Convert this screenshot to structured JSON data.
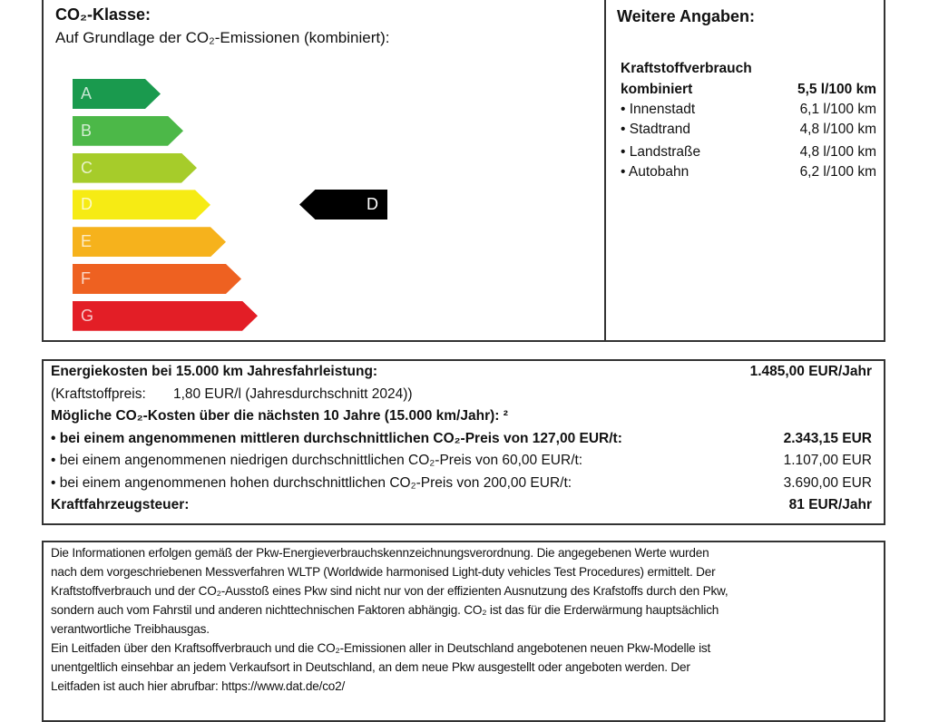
{
  "co2_class": {
    "title": "CO₂-Klasse:",
    "subtitle": "Auf Grundlage der CO₂-Emissionen (kombiniert):",
    "classes": [
      {
        "label": "A",
        "color": "#1a9a4e"
      },
      {
        "label": "B",
        "color": "#4cb848"
      },
      {
        "label": "C",
        "color": "#a6cc2a"
      },
      {
        "label": "D",
        "color": "#f6eb14"
      },
      {
        "label": "E",
        "color": "#f6b21c"
      },
      {
        "label": "F",
        "color": "#ee6121"
      },
      {
        "label": "G",
        "color": "#e31e26"
      }
    ],
    "current": "D"
  },
  "weitere": {
    "title": "Weitere Angaben:",
    "heading": "Kraftstoffverbrauch",
    "rows": [
      {
        "label": "kombiniert",
        "value": "5,5 l/100 km"
      },
      {
        "label": "• Innenstadt",
        "value": "6,1 l/100 km"
      },
      {
        "label": "• Stadtrand",
        "value": "4,8 l/100 km"
      },
      {
        "label": "• Landstraße",
        "value": "4,8 l/100 km"
      },
      {
        "label": "• Autobahn",
        "value": "6,2 l/100 km"
      }
    ]
  },
  "costs": {
    "rows": [
      {
        "label": "Energiekosten bei 15.000 km Jahresfahrleistung:",
        "value": "1.485,00 EUR/Jahr"
      },
      {
        "label": "(Kraftstoffpreis:       1,80 EUR/l (Jahresdurchschnitt 2024))",
        "value": ""
      },
      {
        "label": "Mögliche CO₂-Kosten über die nächsten 10 Jahre (15.000 km/Jahr): ²",
        "value": ""
      },
      {
        "label": "• bei einem angenommenen mittleren durchschnittlichen CO₂-Preis von 127,00 EUR/t:",
        "value": "2.343,15 EUR"
      },
      {
        "label": "• bei einem angenommenen niedrigen durchschnittlichen CO₂-Preis von 60,00 EUR/t:",
        "value": "1.107,00 EUR"
      },
      {
        "label": "• bei einem angenommenen hohen durchschnittlichen CO₂-Preis von 200,00 EUR/t:",
        "value": "3.690,00 EUR"
      },
      {
        "label": "Kraftfahrzeugsteuer:",
        "value": "81 EUR/Jahr"
      }
    ]
  },
  "info": {
    "lines": [
      "Die Informationen erfolgen gemäß der Pkw-Energieverbrauchskennzeichnungsverordnung. Die angegebenen Werte wurden",
      "nach dem vorgeschriebenen Messverfahren WLTP (Worldwide harmonised Light-duty vehicles Test Procedures) ermittelt. Der",
      "Kraftstoffverbrauch und der CO₂-Ausstoß eines Pkw sind nicht nur von der effizienten Ausnutzung des Krafstoffs durch den Pkw,",
      "sondern auch vom Fahrstil und anderen nichttechnischen Faktoren abhängig. CO₂ ist das für die Erderwärmung hauptsächlich",
      "verantwortliche Treibhausgas.",
      "Ein Leitfaden über den Kraftsoffverbrauch und die CO₂-Emissionen aller in Deutschland angebotenen neuen Pkw-Modelle ist",
      "unentgeltlich einsehbar an jedem Verkaufsort in Deutschland, an dem neue Pkw ausgestellt oder angeboten werden. Der",
      "Leitfaden ist auch hier abrufbar: https://www.dat.de/co2/"
    ]
  }
}
